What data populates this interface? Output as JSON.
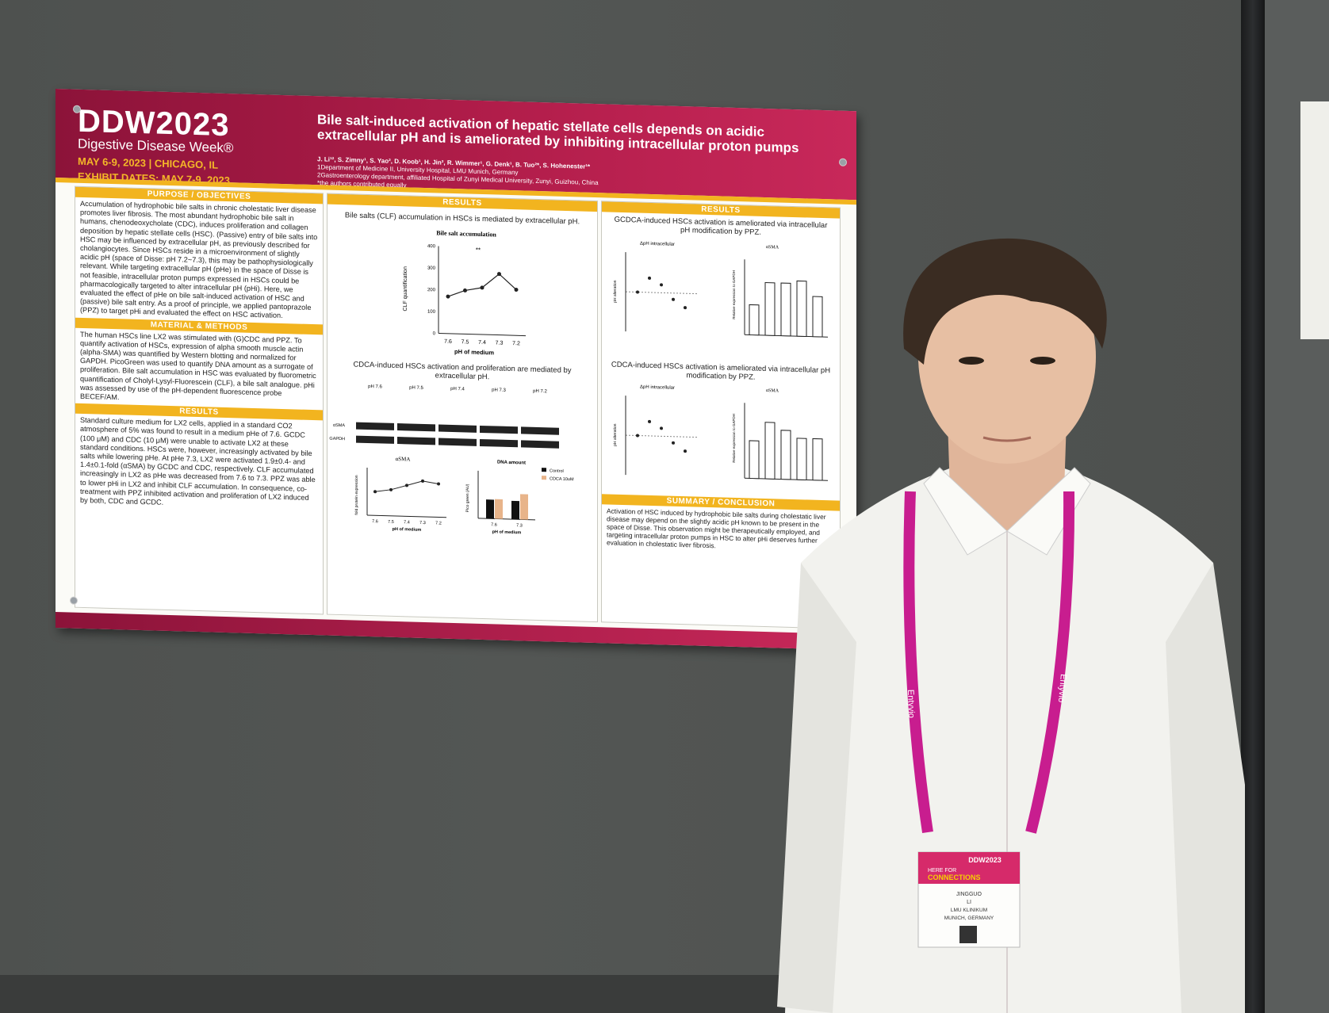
{
  "header": {
    "logo": "DDW2023",
    "logo_sub": "Digestive Disease Week®",
    "dates": "MAY 6-9, 2023 | CHICAGO, IL",
    "exhibit": "EXHIBIT DATES: MAY 7-9, 2023",
    "title": "Bile salt-induced activation of hepatic stellate cells depends on acidic extracellular pH and is ameliorated by inhibiting intracellular proton pumps",
    "authors": "J. Li¹², S. Zimny¹, S. Yao², D. Koob¹, H. Jin², R. Wimmer¹, G. Denk¹, B. Tuo²*, S. Hohenester¹*",
    "aff1": "1Department of Medicine II, University Hospital, LMU Munich, Germany",
    "aff2": "2Gastroenterology department, affiliated Hospital of Zunyi Medical University, Zunyi, Guizhou, China",
    "aff3": "*the authors contributed equally"
  },
  "left": {
    "purpose_head": "PURPOSE / OBJECTIVES",
    "purpose_text": "Accumulation of hydrophobic bile salts in chronic cholestatic liver disease promotes liver fibrosis. The most abundant hydrophobic bile salt in humans, chenodeoxycholate (CDC), induces proliferation and collagen deposition by hepatic stellate cells (HSC). (Passive) entry of bile salts into HSC may be influenced by extracellular pH, as previously described for cholangiocytes. Since HSCs reside in a microenvironment of slightly acidic pH (space of Disse: pH 7.2~7.3), this may be pathophysiologically relevant. While targeting extracellular pH (pHe) in the space of Disse is not feasible, intracellular proton pumps expressed in HSCs could be pharmacologically targeted to alter intracellular pH (pHi). Here, we evaluated the effect of pHe on bile salt-induced activation of HSC and (passive) bile salt entry. As a proof of principle, we applied pantoprazole (PPZ) to target pHi and evaluated the effect on HSC activation.",
    "methods_head": "MATERIAL & METHODS",
    "methods_text": "The human HSCs line LX2 was stimulated with (G)CDC and PPZ. To quantify activation of HSCs, expression of alpha smooth muscle actin (alpha-SMA) was quantified by Western blotting and normalized for GAPDH. PicoGreen was used to quantify DNA amount as a surrogate of proliferation. Bile salt accumulation in HSC was evaluated by fluorometric quantification of Cholyl-Lysyl-Fluorescein (CLF), a bile salt analogue. pHi was assessed by use of the pH-dependent fluorescence probe BECEF/AM.",
    "results_head": "RESULTS",
    "results_text": "Standard culture medium for LX2 cells, applied in a standard CO2 atmosphere of 5% was found to result in a medium pHe of 7.6. GCDC (100 μM) and CDC (10 μM) were unable to activate LX2 at these standard conditions. HSCs were, however, increasingly activated by bile salts while lowering pHe. At pHe 7.3, LX2 were activated 1.9±0.4- and 1.4±0.1-fold (αSMA) by GCDC and CDC, respectively. CLF accumulated increasingly in LX2 as pHe was decreased from 7.6 to 7.3. PPZ was able to lower pHi in LX2 and inhibit CLF accumulation. In consequence, co-treatment with PPZ inhibited activation and proliferation of LX2 induced by both, CDC and GCDC."
  },
  "middle": {
    "head": "RESULTS",
    "cap1": "Bile salts (CLF) accumulation in HSCs is mediated by extracellular pH.",
    "chart_title": "Bile salt accumulation",
    "ylabel": "CLF quantification",
    "xlabel": "pH of medium",
    "sig": "**",
    "cap2": "CDCA-induced HSCs activation and proliferation are mediated by extracellular pH.",
    "blot_labels": [
      "pH 7.6",
      "pH 7.5",
      "pH 7.4",
      "pH 7.3",
      "pH 7.2"
    ],
    "blot_rows": [
      "αSMA",
      "GAPDH"
    ],
    "asma_title": "αSMA",
    "asma_ylabel": "fold protein expression",
    "dna_title": "DNA amount",
    "dna_ylabel": "Pico green (AU)",
    "legend_control": "Control",
    "legend_cdca": "CDCA 10uM"
  },
  "right": {
    "head": "RESULTS",
    "cap1": "GCDCA-induced HSCs activation is ameliorated via intracellular pH modification by PPZ.",
    "cap2": "CDCA-induced HSCs activation is ameliorated via intracellular pH modification by PPZ.",
    "ph_title": "ΔpH intracellular",
    "ph_ylabel": "pH alteration",
    "sma_title": "αSMA",
    "sma_ylabel": "Relative expression to GAPDH",
    "summary_head": "SUMMARY / CONCLUSION",
    "summary_text": "Activation of HSC induced by hydrophobic bile salts during cholestatic liver disease may depend on the slightly acidic pH known to be present in the space of Disse. This observation might be therapeutically employed, and targeting intracellular proton pumps in HSC to alter pHi deserves further evaluation in cholestatic liver fibrosis."
  },
  "badge": {
    "logo": "DDW2023",
    "tagline1": "HERE FOR",
    "tagline2": "CONNECTIONS",
    "first": "JINGGUO",
    "last": "LI",
    "org": "LMU KLINIKUM",
    "city": "MUNICH, GERMANY"
  },
  "lanyard": "Entyvio",
  "chart_data": [
    {
      "type": "line",
      "title": "Bile salt accumulation",
      "x": [
        "7.6",
        "7.5",
        "7.4",
        "7.3",
        "7.2"
      ],
      "values": [
        170,
        200,
        215,
        280,
        210
      ],
      "xlabel": "pH of medium",
      "ylabel": "CLF quantification",
      "ylim": [
        0,
        400
      ]
    },
    {
      "type": "line",
      "title": "αSMA",
      "x": [
        "7.6",
        "7.5",
        "7.4",
        "7.3",
        "7.2"
      ],
      "values": [
        1.0,
        1.1,
        1.3,
        1.5,
        1.4
      ],
      "xlabel": "pH of medium",
      "ylim": [
        0,
        2.0
      ]
    },
    {
      "type": "bar",
      "title": "DNA amount",
      "categories": [
        "7.6",
        "7.3"
      ],
      "series": [
        {
          "name": "Control",
          "values": [
            6000,
            5800
          ]
        },
        {
          "name": "CDCA 10uM",
          "values": [
            6200,
            8000
          ]
        }
      ],
      "ylabel": "Pico green (AU)",
      "ylim": [
        0,
        15000
      ]
    },
    {
      "type": "bar",
      "title": "αSMA (GCDCA)",
      "categories": [
        "1",
        "2",
        "3",
        "4",
        "5"
      ],
      "values": [
        0.6,
        1.05,
        1.05,
        1.1,
        0.8
      ],
      "ylim": [
        0,
        1.5
      ]
    },
    {
      "type": "bar",
      "title": "αSMA (CDCA)",
      "categories": [
        "1",
        "2",
        "3",
        "4",
        "5"
      ],
      "values": [
        0.5,
        0.75,
        0.65,
        0.55,
        0.55
      ],
      "ylim": [
        0,
        1.0
      ]
    }
  ]
}
